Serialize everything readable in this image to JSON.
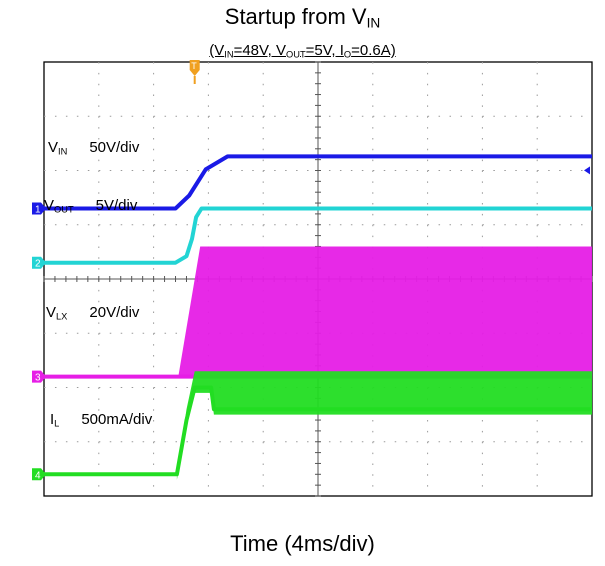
{
  "chart_data": {
    "type": "line",
    "title": {
      "main": "Startup from V",
      "sub": "IN"
    },
    "subtitle": {
      "parts": [
        {
          "t": "(V"
        },
        {
          "t": "IN",
          "sub": true
        },
        {
          "t": "=48V,  V"
        },
        {
          "t": "OUT",
          "sub": true
        },
        {
          "t": "=5V, I"
        },
        {
          "t": "O",
          "sub": true
        },
        {
          "t": "=0.6A)"
        }
      ]
    },
    "xlabel": "Time (4ms/div)",
    "divisions": {
      "x": 10,
      "y": 8
    },
    "time_unit": "ms",
    "time_per_div": 4,
    "trigger_marker": "T",
    "series": [
      {
        "id": "ch1",
        "channel": "1",
        "name_main": "V",
        "name_sub": "IN",
        "scale": "50V/div",
        "color": "#1a1ae6",
        "zero_div": 5.3,
        "points": [
          [
            0,
            0
          ],
          [
            9.6,
            0
          ],
          [
            10.6,
            12
          ],
          [
            11.8,
            36
          ],
          [
            13.4,
            48
          ],
          [
            40,
            48
          ]
        ]
      },
      {
        "id": "ch2",
        "channel": "2",
        "name_main": "V",
        "name_sub": "OUT",
        "scale": "5V/div",
        "color": "#22d4d4",
        "zero_div": 4.3,
        "points": [
          [
            0,
            0
          ],
          [
            9.6,
            0
          ],
          [
            10.4,
            0.6
          ],
          [
            10.8,
            2.2
          ],
          [
            11.1,
            4.2
          ],
          [
            11.5,
            5
          ],
          [
            40,
            5
          ]
        ]
      },
      {
        "id": "ch3",
        "channel": "3",
        "name_main": "V",
        "name_sub": "LX",
        "scale": "20V/div",
        "color": "#e61ee6",
        "zero_div": 2.2,
        "switching": true,
        "points": [
          [
            0,
            0
          ],
          [
            9.8,
            0
          ],
          [
            40,
            0
          ]
        ],
        "envelope_high": [
          [
            9.8,
            0
          ],
          [
            11.4,
            48
          ],
          [
            40,
            48
          ]
        ]
      },
      {
        "id": "ch4",
        "channel": "4",
        "name_main": "I",
        "name_sub": "L",
        "scale": "500mA/div",
        "color": "#22dd22",
        "zero_div": 0.4,
        "switching": true,
        "points": [
          [
            0,
            0
          ],
          [
            9.7,
            0
          ],
          [
            10.4,
            0.5
          ],
          [
            11.0,
            0.8
          ],
          [
            12.2,
            0.8
          ],
          [
            12.4,
            0.6
          ],
          [
            40,
            0.6
          ]
        ],
        "envelope_high": [
          [
            9.7,
            0
          ],
          [
            10.4,
            0.6
          ],
          [
            11.0,
            0.95
          ],
          [
            40,
            0.95
          ]
        ]
      }
    ],
    "legend_placement": "inline-left"
  }
}
